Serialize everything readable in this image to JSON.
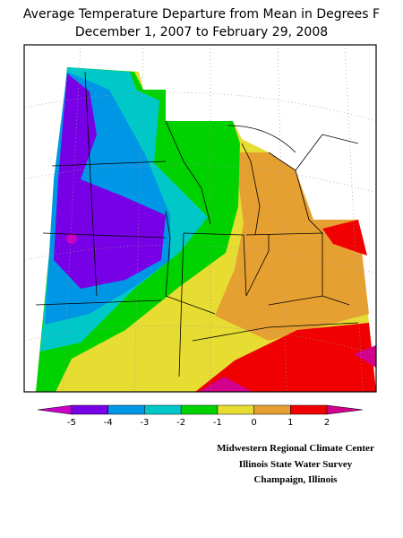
{
  "title": [
    "Average Temperature Departure from Mean in Degrees F",
    "December 1, 2007 to February 29, 2008"
  ],
  "legend": {
    "ticks": [
      -5,
      -4,
      -3,
      -2,
      -1,
      0,
      1,
      2
    ],
    "colors": [
      "#c800c8",
      "#7800e6",
      "#0096e6",
      "#00c8c8",
      "#00d200",
      "#e6dc32",
      "#e6a032",
      "#f00000",
      "#d2008c"
    ]
  },
  "credits": [
    "Midwestern Regional Climate Center",
    "Illinois State Water Survey",
    "Champaign, Illinois"
  ]
}
